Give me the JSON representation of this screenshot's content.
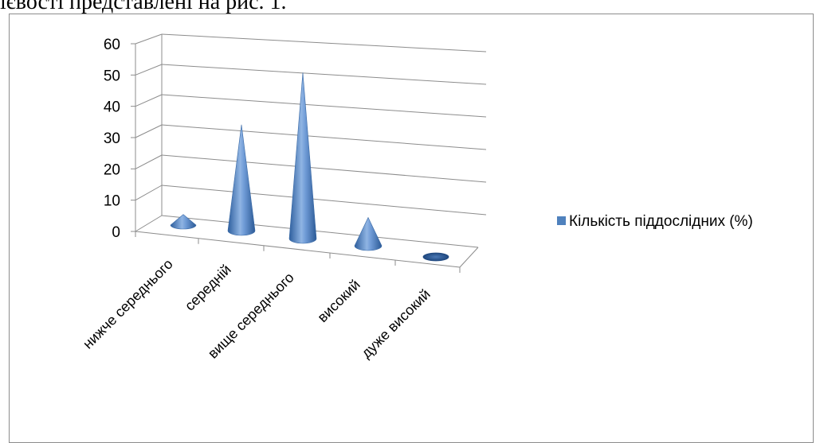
{
  "intro_text": "ієвості представлені на рис. 1.",
  "chart_data": {
    "type": "bar",
    "shape": "3d-cone",
    "categories": [
      "нижче середнього",
      "середній",
      "вище середнього",
      "високий",
      "дуже високий"
    ],
    "series": [
      {
        "name": "Кількість піддослідних (%)",
        "values": [
          3,
          30,
          47,
          8,
          0
        ],
        "color": "#4f81bd"
      }
    ],
    "y_ticks": [
      "0",
      "10",
      "20",
      "30",
      "40",
      "50",
      "60"
    ],
    "ylim": [
      0,
      60
    ],
    "grid": true,
    "legend": "right"
  }
}
